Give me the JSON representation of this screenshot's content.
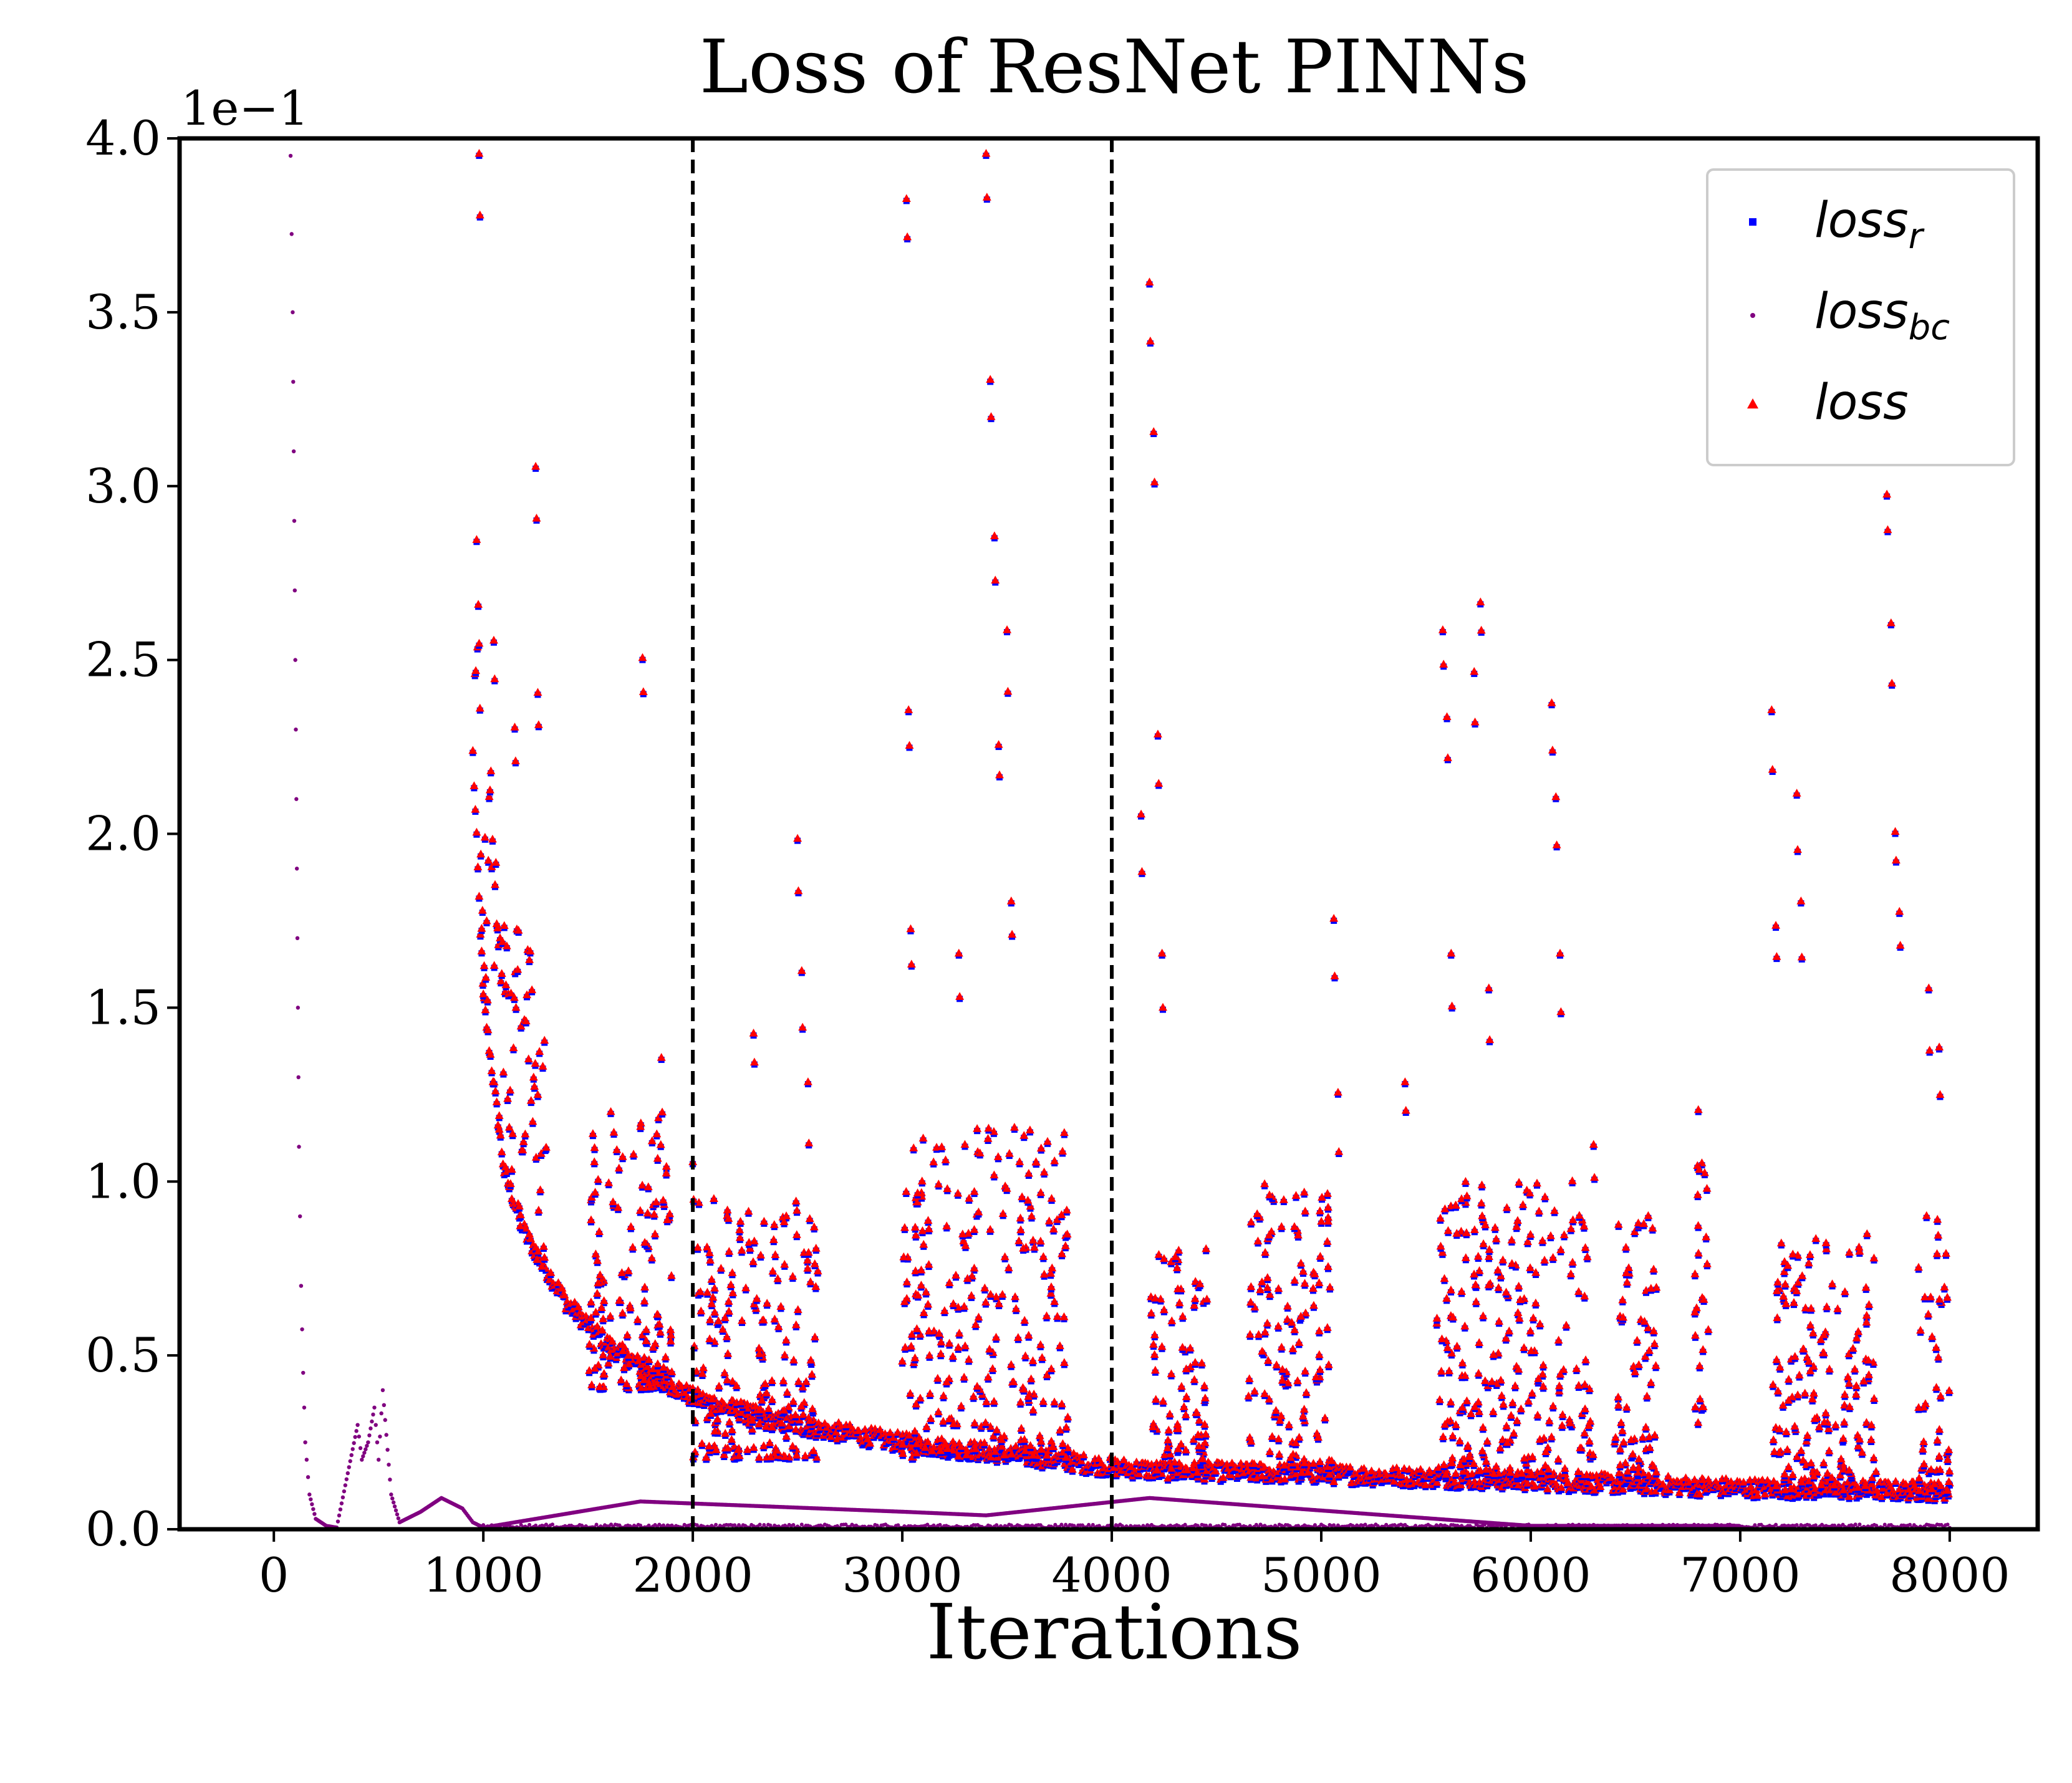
{
  "chart_data": {
    "type": "scatter",
    "title": "Loss of ResNet PINNs",
    "xlabel": "Iterations",
    "ylabel": "",
    "y_scale_note": "1e−1",
    "xlim": [
      -450,
      8420
    ],
    "ylim": [
      0,
      4.0
    ],
    "x_ticks": [
      0,
      1000,
      2000,
      3000,
      4000,
      5000,
      6000,
      7000,
      8000
    ],
    "x_tick_labels": [
      "0",
      "1000",
      "2000",
      "3000",
      "4000",
      "5000",
      "6000",
      "7000",
      "8000"
    ],
    "y_ticks": [
      0,
      0.5,
      1.0,
      1.5,
      2.0,
      2.5,
      3.0,
      3.5,
      4.0
    ],
    "y_tick_labels": [
      "0.0",
      "0.5",
      "1.0",
      "1.5",
      "2.0",
      "2.5",
      "3.0",
      "3.5",
      "4.0"
    ],
    "grid": false,
    "legend_position": "top-right",
    "vlines": [
      2000,
      4000
    ],
    "series": [
      {
        "name_base": "loss",
        "name_sub": "r",
        "marker": "square",
        "color": "#0000ff",
        "baseline": [
          [
            950,
            2.2
          ],
          [
            1000,
            1.5
          ],
          [
            1100,
            1.0
          ],
          [
            1200,
            0.82
          ],
          [
            1400,
            0.62
          ],
          [
            1600,
            0.5
          ],
          [
            1800,
            0.42
          ],
          [
            2000,
            0.35
          ],
          [
            2400,
            0.28
          ],
          [
            3000,
            0.22
          ],
          [
            3600,
            0.18
          ],
          [
            4000,
            0.15
          ],
          [
            4200,
            0.14
          ],
          [
            5000,
            0.13
          ],
          [
            6000,
            0.11
          ],
          [
            7000,
            0.09
          ],
          [
            8000,
            0.08
          ]
        ],
        "spikes": [
          [
            980,
            3.95
          ],
          [
            1050,
            2.55
          ],
          [
            1150,
            2.3
          ],
          [
            1250,
            3.05
          ],
          [
            1260,
            2.4
          ],
          [
            1530,
            1.05
          ],
          [
            1760,
            2.5
          ],
          [
            1850,
            1.35
          ],
          [
            2000,
            1.05
          ],
          [
            2290,
            1.42
          ],
          [
            2500,
            1.98
          ],
          [
            2520,
            1.6
          ],
          [
            2550,
            1.28
          ],
          [
            3020,
            3.82
          ],
          [
            3030,
            2.35
          ],
          [
            3040,
            1.72
          ],
          [
            3270,
            1.65
          ],
          [
            3400,
            3.95
          ],
          [
            3420,
            3.3
          ],
          [
            3440,
            2.85
          ],
          [
            3460,
            2.25
          ],
          [
            3500,
            2.58
          ],
          [
            3520,
            1.8
          ],
          [
            3560,
            1.05
          ],
          [
            4140,
            2.05
          ],
          [
            4180,
            3.58
          ],
          [
            4200,
            3.15
          ],
          [
            4220,
            2.28
          ],
          [
            4240,
            1.65
          ],
          [
            4450,
            0.8
          ],
          [
            5060,
            1.75
          ],
          [
            5080,
            1.25
          ],
          [
            5400,
            1.28
          ],
          [
            5580,
            2.58
          ],
          [
            5600,
            2.33
          ],
          [
            5620,
            1.65
          ],
          [
            5730,
            2.46
          ],
          [
            5760,
            2.66
          ],
          [
            5800,
            1.55
          ],
          [
            6100,
            2.37
          ],
          [
            6120,
            2.1
          ],
          [
            6140,
            1.65
          ],
          [
            6300,
            1.1
          ],
          [
            6800,
            1.2
          ],
          [
            7150,
            2.35
          ],
          [
            7170,
            1.73
          ],
          [
            7270,
            2.11
          ],
          [
            7290,
            1.8
          ],
          [
            7700,
            2.97
          ],
          [
            7720,
            2.6
          ],
          [
            7740,
            2.0
          ],
          [
            7760,
            1.77
          ],
          [
            7900,
            1.55
          ],
          [
            7950,
            1.38
          ]
        ],
        "clusters": [
          [
            1500,
            1900,
            0.4,
            1.2
          ],
          [
            2000,
            2600,
            0.2,
            0.95
          ],
          [
            3000,
            3800,
            0.2,
            1.15
          ],
          [
            4180,
            4450,
            0.15,
            0.8
          ],
          [
            4650,
            5050,
            0.15,
            1.0
          ],
          [
            5550,
            6300,
            0.15,
            1.0
          ],
          [
            6400,
            6600,
            0.15,
            0.9
          ],
          [
            6780,
            6850,
            0.3,
            1.05
          ],
          [
            7150,
            7650,
            0.1,
            0.85
          ],
          [
            7850,
            8000,
            0.1,
            0.9
          ]
        ]
      },
      {
        "name_base": "loss",
        "name_sub": "bc",
        "marker": "dot",
        "color": "#800080",
        "points": [
          [
            80,
            3.95
          ],
          [
            90,
            3.5
          ],
          [
            95,
            3.1
          ],
          [
            100,
            2.7
          ],
          [
            105,
            2.3
          ],
          [
            110,
            1.9
          ],
          [
            115,
            1.5
          ],
          [
            120,
            1.1
          ],
          [
            130,
            0.7
          ],
          [
            140,
            0.45
          ],
          [
            150,
            0.25
          ],
          [
            170,
            0.1
          ],
          [
            200,
            0.03
          ],
          [
            250,
            0.01
          ],
          [
            300,
            0.005
          ],
          [
            400,
            0.3
          ],
          [
            420,
            0.2
          ],
          [
            450,
            0.25
          ],
          [
            480,
            0.35
          ],
          [
            500,
            0.2
          ],
          [
            520,
            0.4
          ],
          [
            560,
            0.1
          ],
          [
            600,
            0.02
          ],
          [
            700,
            0.05
          ],
          [
            800,
            0.09
          ],
          [
            900,
            0.06
          ],
          [
            950,
            0.02
          ],
          [
            1000,
            0.005
          ],
          [
            1750,
            0.08
          ],
          [
            3020,
            0.05
          ],
          [
            3400,
            0.04
          ],
          [
            4180,
            0.09
          ],
          [
            6000,
            0.01
          ],
          [
            7000,
            0.01
          ]
        ]
      },
      {
        "name_base": "loss",
        "name_sub": "",
        "marker": "triangle",
        "color": "#ff0000"
      }
    ]
  }
}
